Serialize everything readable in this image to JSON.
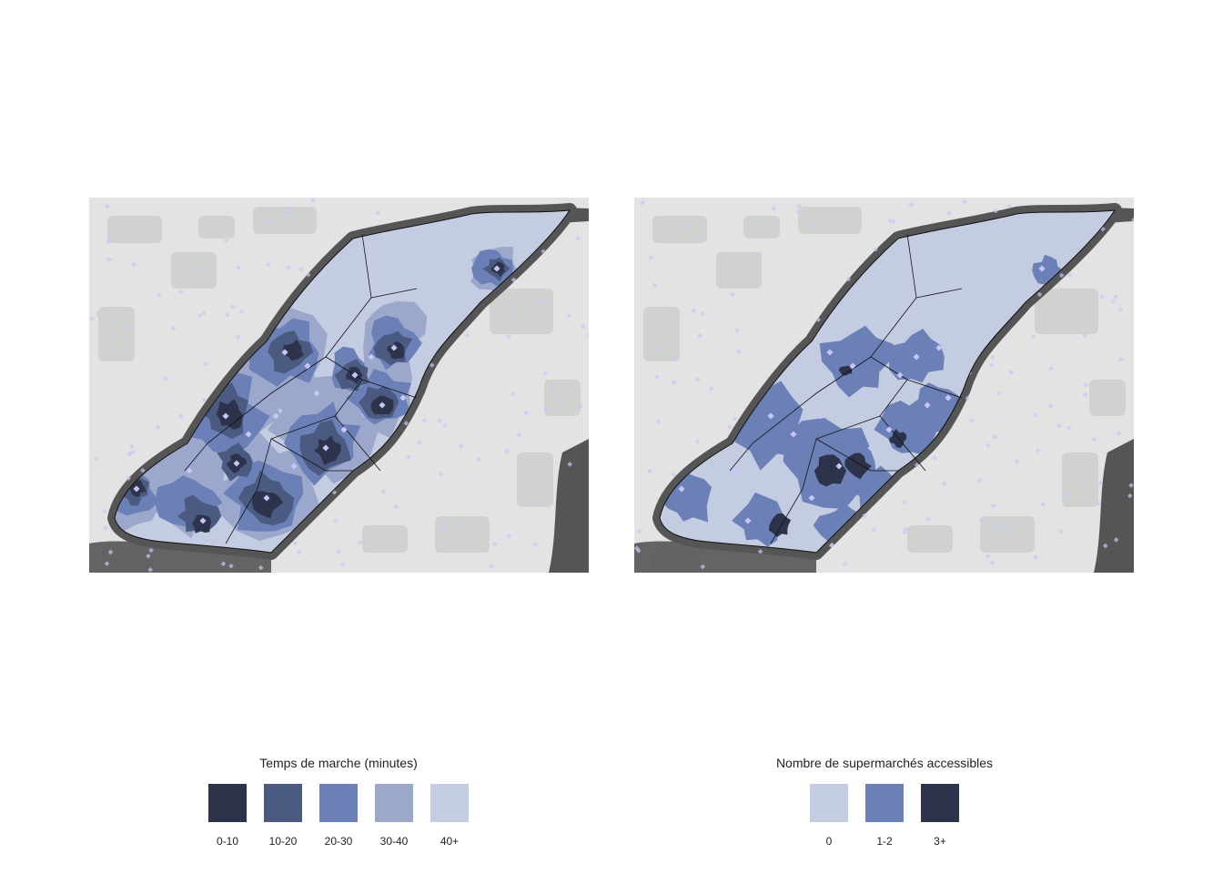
{
  "colors": {
    "land": "#e3e3e3",
    "park": "#c9cdc9",
    "water": "#555555",
    "boundary": "#111111",
    "store": "#c8c6f6"
  },
  "maps": [
    {
      "name": "temps-de-marche",
      "base_class": "40+",
      "zones": [
        {
          "class": "30-40",
          "color": "#9ca8cb"
        },
        {
          "class": "20-30",
          "color": "#6b80b6"
        },
        {
          "class": "10-20",
          "color": "#4a5a80"
        },
        {
          "class": "0-10",
          "color": "#2d334b"
        }
      ],
      "legend": {
        "title": "Temps de marche (minutes)",
        "items": [
          {
            "label": "0-10",
            "color": "#2d334b"
          },
          {
            "label": "10-20",
            "color": "#4a5a80"
          },
          {
            "label": "20-30",
            "color": "#6b80b6"
          },
          {
            "label": "30-40",
            "color": "#9ca8cb"
          },
          {
            "label": "40+",
            "color": "#c4cce2"
          }
        ]
      }
    },
    {
      "name": "nombre-de-supermarches",
      "base_class": "0",
      "zones": [
        {
          "class": "1-2",
          "color": "#6b80b6"
        },
        {
          "class": "3+",
          "color": "#2d334b"
        }
      ],
      "legend": {
        "title": "Nombre de supermarchés accessibles",
        "items": [
          {
            "label": "0",
            "color": "#c4cce2"
          },
          {
            "label": "1-2",
            "color": "#6b80b6"
          },
          {
            "label": "3+",
            "color": "#2d334b"
          }
        ]
      }
    }
  ]
}
